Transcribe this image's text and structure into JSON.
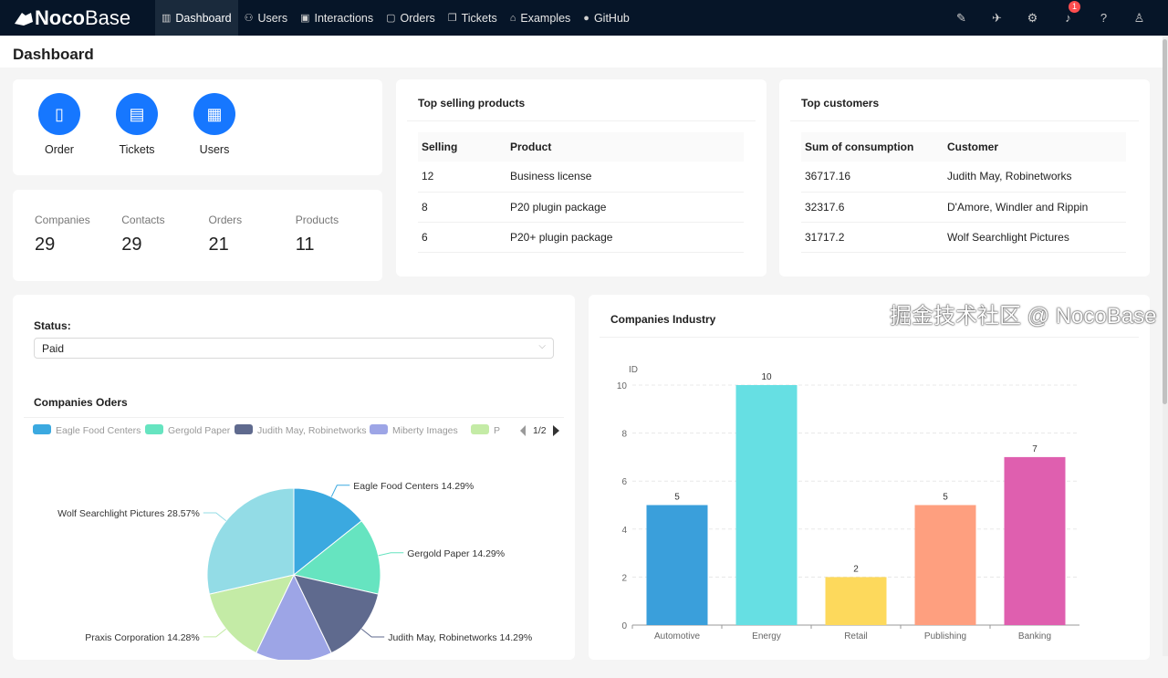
{
  "header": {
    "logo_bold": "Noco",
    "logo_light": "Base",
    "nav": [
      {
        "label": "Dashboard",
        "icon": "bar-chart-icon",
        "active": true
      },
      {
        "label": "Users",
        "icon": "users-icon"
      },
      {
        "label": "Interactions",
        "icon": "calendar-check-icon"
      },
      {
        "label": "Orders",
        "icon": "calendar-yen-icon"
      },
      {
        "label": "Tickets",
        "icon": "copy-icon"
      },
      {
        "label": "Examples",
        "icon": "bank-icon"
      },
      {
        "label": "GitHub",
        "icon": "github-icon"
      }
    ],
    "right_icons": [
      "highlighter-icon",
      "plugin-icon",
      "gear-icon",
      "bell-icon",
      "help-icon",
      "user-icon"
    ],
    "notification_count": "1"
  },
  "page_title": "Dashboard",
  "quick_actions": [
    {
      "label": "Order",
      "icon": "book-icon"
    },
    {
      "label": "Tickets",
      "icon": "ticket-icon"
    },
    {
      "label": "Users",
      "icon": "user-card-icon"
    }
  ],
  "stats": [
    {
      "label": "Companies",
      "value": "29"
    },
    {
      "label": "Contacts",
      "value": "29"
    },
    {
      "label": "Orders",
      "value": "21"
    },
    {
      "label": "Products",
      "value": "11"
    }
  ],
  "top_products": {
    "title": "Top selling products",
    "columns": [
      "Selling",
      "Product"
    ],
    "rows": [
      [
        "12",
        "Business license"
      ],
      [
        "8",
        "P20 plugin package"
      ],
      [
        "6",
        "P20+ plugin package"
      ]
    ]
  },
  "top_customers": {
    "title": "Top customers",
    "columns": [
      "Sum of consumption",
      "Customer"
    ],
    "rows": [
      [
        "36717.16",
        "Judith May, Robinetworks"
      ],
      [
        "32317.6",
        "D'Amore, Windler and Rippin"
      ],
      [
        "31717.2",
        "Wolf Searchlight Pictures"
      ]
    ]
  },
  "filter": {
    "label": "Status",
    "value": "Paid"
  },
  "watermark": "掘金技术社区 @ NocoBase",
  "chart_data": [
    {
      "type": "pie",
      "title": "Companies Oders",
      "legend_page": "1/2",
      "legend_placement": "top",
      "legend": [
        "Eagle Food Centers",
        "Gergold Paper",
        "Judith May, Robinetworks",
        "Miberty Images",
        "P"
      ],
      "slices": [
        {
          "name": "Eagle Food Centers",
          "value": 14.29,
          "label": "Eagle Food Centers 14.29%",
          "color": "#3BA9E0"
        },
        {
          "name": "Gergold Paper",
          "value": 14.29,
          "label": "Gergold Paper 14.29%",
          "color": "#66E4C0"
        },
        {
          "name": "Judith May, Robinetworks",
          "value": 14.29,
          "label": "Judith May, Robinetworks 14.29%",
          "color": "#5F6A8E"
        },
        {
          "name": "Miberty Images",
          "value": 14.29,
          "color": "#9DA5E6"
        },
        {
          "name": "Praxis Corporation",
          "value": 14.28,
          "label": "Praxis Corporation 14.28%",
          "color": "#C4EBA6"
        },
        {
          "name": "Wolf Searchlight Pictures",
          "value": 28.57,
          "label": "Wolf Searchlight Pictures 28.57%",
          "color": "#93DCE6"
        }
      ]
    },
    {
      "type": "bar",
      "title": "Companies Industry",
      "ylabel": "ID",
      "ylim": [
        0,
        10
      ],
      "yticks": [
        0,
        2,
        4,
        6,
        8,
        10
      ],
      "grid": true,
      "categories": [
        "Automotive",
        "Energy",
        "Retail",
        "Publishing",
        "Banking"
      ],
      "values": [
        5,
        10,
        2,
        5,
        7
      ],
      "colors": [
        "#3A9FDB",
        "#66DFE3",
        "#FDD95C",
        "#FE9F7F",
        "#DF5FAF"
      ]
    }
  ]
}
